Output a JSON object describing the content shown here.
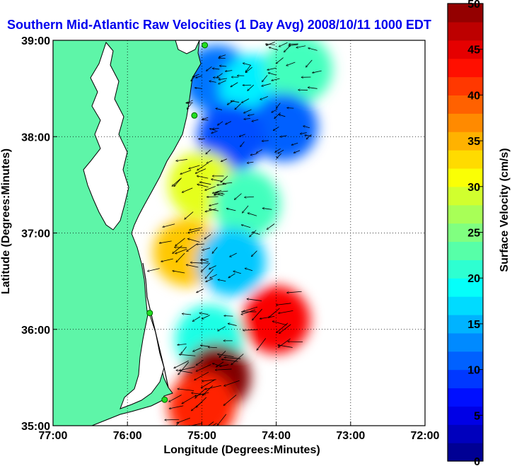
{
  "chart_data": {
    "type": "heatmap",
    "title": "Southern Mid-Atlantic Raw Velocities (1 Day Avg) 2008/10/11 1000 EDT",
    "xlabel": "Longitude (Degrees:Minutes)",
    "ylabel": "Latitude (Degrees:Minutes)",
    "colorbar_label": "Surface Velocity (cm/s)",
    "xlim": [
      -77,
      -72
    ],
    "ylim": [
      35,
      39
    ],
    "clim": [
      0,
      50
    ],
    "grid": true,
    "x_ticks": [
      -77,
      -76,
      -75,
      -74,
      -73,
      -72
    ],
    "x_tick_labels": [
      "77:00",
      "76:00",
      "75:00",
      "74:00",
      "73:00",
      "72:00"
    ],
    "y_ticks": [
      35,
      36,
      37,
      38,
      39
    ],
    "y_tick_labels": [
      "35:00",
      "36:00",
      "37:00",
      "38:00",
      "39:00"
    ],
    "colorbar_ticks": [
      0,
      5,
      10,
      15,
      20,
      25,
      30,
      35,
      40,
      45,
      50
    ],
    "colorbar_tick_labels": [
      "0",
      "5",
      "10",
      "15",
      "20",
      "25",
      "30",
      "35",
      "40",
      "45",
      "50"
    ],
    "colormap": "jet",
    "land_color": "#5ef5a8",
    "stations": [
      {
        "lon": -74.96,
        "lat": 38.95
      },
      {
        "lon": -75.1,
        "lat": 38.22
      },
      {
        "lon": -75.7,
        "lat": 36.17
      },
      {
        "lon": -75.5,
        "lat": 35.27
      }
    ],
    "velocity_regions": [
      {
        "lon": -74.8,
        "lat": 38.6,
        "speed": 12
      },
      {
        "lon": -74.3,
        "lat": 38.5,
        "speed": 18
      },
      {
        "lon": -73.7,
        "lat": 38.7,
        "speed": 22
      },
      {
        "lon": -73.9,
        "lat": 38.1,
        "speed": 11
      },
      {
        "lon": -74.6,
        "lat": 38.0,
        "speed": 10
      },
      {
        "lon": -75.0,
        "lat": 37.5,
        "speed": 30
      },
      {
        "lon": -74.4,
        "lat": 37.3,
        "speed": 22
      },
      {
        "lon": -75.2,
        "lat": 36.8,
        "speed": 34
      },
      {
        "lon": -74.6,
        "lat": 36.7,
        "speed": 16
      },
      {
        "lon": -74.0,
        "lat": 36.1,
        "speed": 44
      },
      {
        "lon": -74.9,
        "lat": 35.9,
        "speed": 20
      },
      {
        "lon": -74.8,
        "lat": 35.5,
        "speed": 50
      },
      {
        "lon": -75.0,
        "lat": 35.2,
        "speed": 42
      }
    ]
  }
}
